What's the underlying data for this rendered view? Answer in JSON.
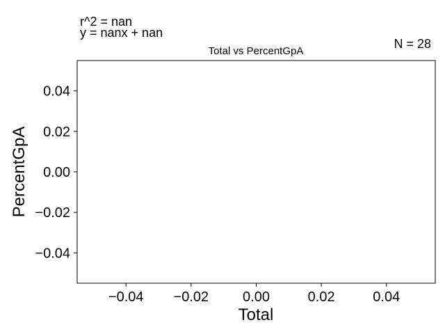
{
  "chart_data": {
    "type": "scatter",
    "title": "Total vs PercentGpA",
    "xlabel": "Total",
    "ylabel": "PercentGpA",
    "xlim": [
      -0.055,
      0.055
    ],
    "ylim": [
      -0.055,
      0.055
    ],
    "xticks": [
      -0.04,
      -0.02,
      0.0,
      0.02,
      0.04
    ],
    "xtick_labels": [
      "−0.04",
      "−0.02",
      "0.00",
      "0.02",
      "0.04"
    ],
    "yticks": [
      0.04,
      0.02,
      0.0,
      -0.02,
      -0.04
    ],
    "ytick_labels": [
      "0.04",
      "0.02",
      "0.00",
      "−0.02",
      "−0.04"
    ],
    "grid": false,
    "series": [
      {
        "x": [],
        "y": []
      }
    ],
    "annotations": {
      "r2": "r^2 = nan",
      "equation": "y = nanx + nan",
      "n": "N = 28"
    }
  }
}
